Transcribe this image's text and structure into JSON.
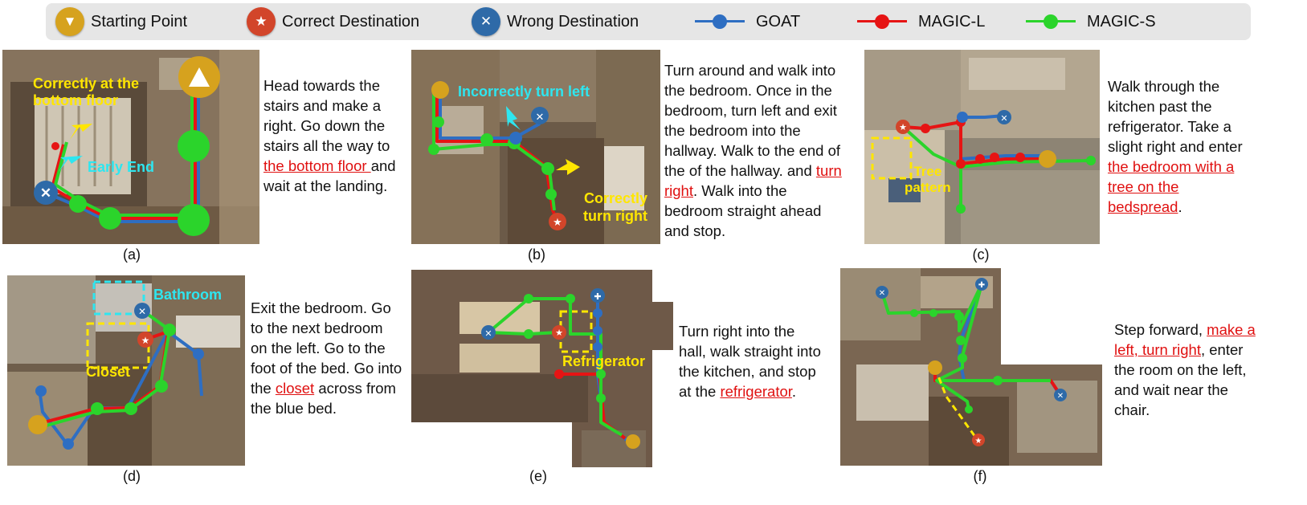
{
  "legend": {
    "starting_point": "Starting Point",
    "correct_destination": "Correct Destination",
    "wrong_destination": "Wrong Destination",
    "goat": "GOAT",
    "magic_l": "MAGIC-L",
    "magic_s": "MAGIC-S"
  },
  "colors": {
    "goat": "#2e6ec2",
    "magic_l": "#e61414",
    "magic_s": "#2bd42b",
    "start": "#d6a21e",
    "correct": "#d2452a",
    "wrong": "#2e6aa8",
    "label_yellow": "#ffe600",
    "label_cyan": "#2ee6f0"
  },
  "panels": {
    "a": {
      "caption": "(a)",
      "labels": {
        "correct_bottom_1": "Correctly at the",
        "correct_bottom_2": "bottom floor",
        "early_end": "Early End"
      },
      "desc": {
        "pre": "Head towards the stairs and make a right. Go down the stairs all the way to ",
        "hl": "the bottom floor ",
        "post": "and wait at the landing."
      }
    },
    "b": {
      "caption": "(b)",
      "labels": {
        "incorrect_left": "Incorrectly turn left",
        "correct_right_1": "Correctly",
        "correct_right_2": "turn right"
      },
      "desc": {
        "pre": "Turn around and walk into the bedroom. Once in the bedroom, turn left and exit the bedroom into the hallway. Walk to the end of the of the hallway. and ",
        "hl": "turn right",
        "post": ". Walk into the bedroom straight ahead and stop."
      }
    },
    "c": {
      "caption": "(c)",
      "labels": {
        "tree_1": "Tree",
        "tree_2": "pattern"
      },
      "desc": {
        "pre": "Walk through the kitchen past the refrigerator. Take a slight right and enter ",
        "hl": "the bedroom with a tree on the bedspread",
        "post": "."
      }
    },
    "d": {
      "caption": "(d)",
      "labels": {
        "bathroom": "Bathroom",
        "closet": "Closet"
      },
      "desc": {
        "pre": "Exit the bedroom. Go to the next bedroom on the left. Go to the foot of the bed. Go into the ",
        "hl": "closet",
        "post": " across from the blue bed."
      }
    },
    "e": {
      "caption": "(e)",
      "labels": {
        "refrigerator": "Refrigerator"
      },
      "desc": {
        "pre": "Turn right into the hall, walk straight into the kitchen, and stop at the ",
        "hl": "refrigerator",
        "post": "."
      }
    },
    "f": {
      "caption": "(f)",
      "labels": {},
      "desc": {
        "pre": "Step forward, ",
        "hl": "make a left, turn right",
        "post": ", enter the room on the left, and wait near the chair."
      }
    }
  }
}
